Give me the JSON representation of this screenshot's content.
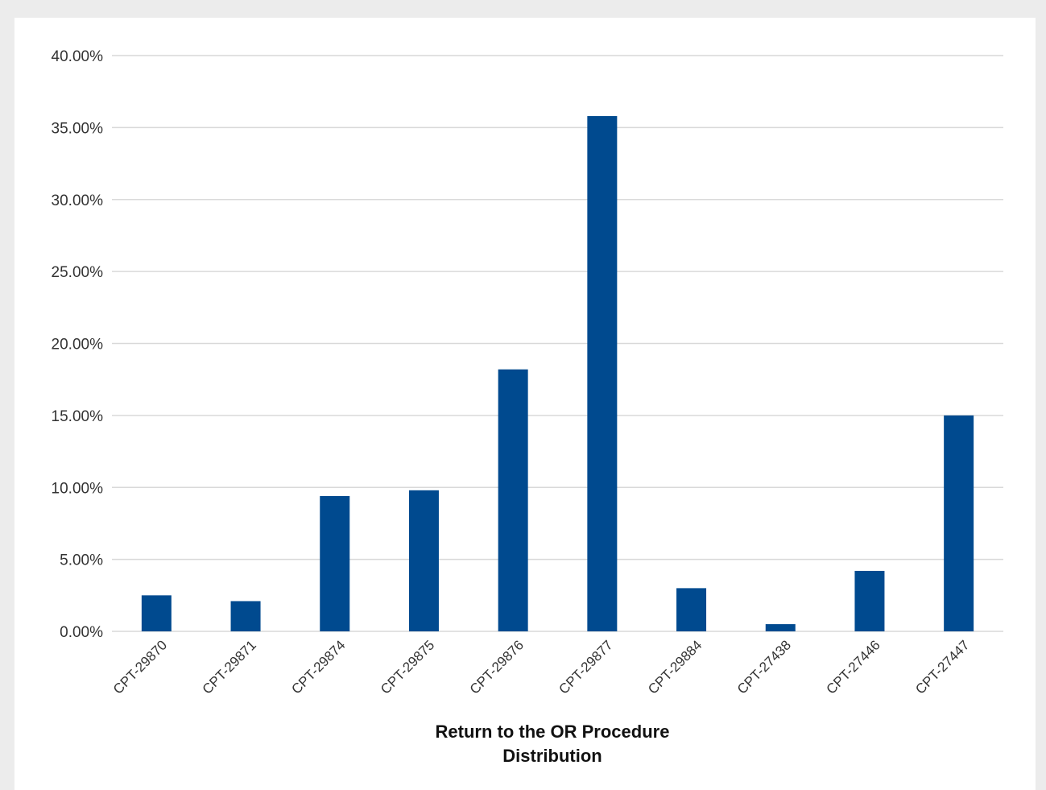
{
  "chart_data": {
    "type": "bar",
    "title": "",
    "xlabel_lines": [
      "Return to the OR Procedure",
      "Distribution"
    ],
    "ylabel": "",
    "ylim": [
      0,
      40
    ],
    "yticks": [
      "0.00%",
      "5.00%",
      "10.00%",
      "15.00%",
      "20.00%",
      "25.00%",
      "30.00%",
      "35.00%",
      "40.00%"
    ],
    "ytick_values": [
      0,
      5,
      10,
      15,
      20,
      25,
      30,
      35,
      40
    ],
    "categories": [
      "CPT-29870",
      "CPT-29871",
      "CPT-29874",
      "CPT-29875",
      "CPT-29876",
      "CPT-29877",
      "CPT-29884",
      "CPT-27438",
      "CPT-27446",
      "CPT-27447"
    ],
    "values": [
      2.5,
      2.1,
      9.4,
      9.8,
      18.2,
      35.8,
      3.0,
      0.5,
      4.2,
      15.0
    ],
    "bar_color": "#004a8f",
    "grid": true,
    "legend": "none"
  }
}
